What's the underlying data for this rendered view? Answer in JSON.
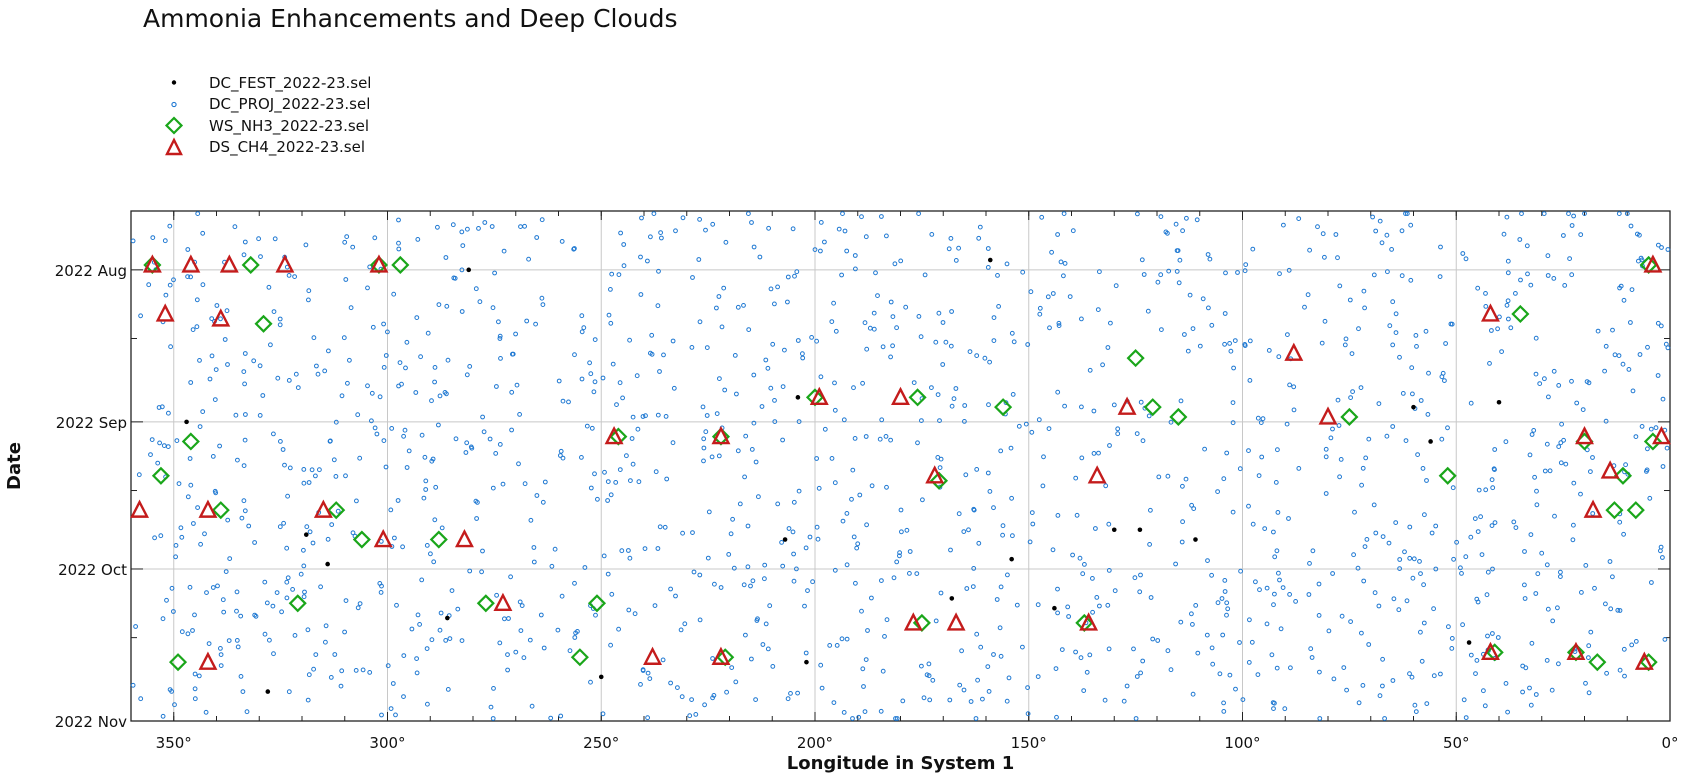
{
  "chart_data": {
    "type": "scatter",
    "title": "Ammonia Enhancements and Deep Clouds",
    "xlabel": "Longitude in System 1",
    "ylabel": "Date",
    "xlim": [
      360,
      0
    ],
    "ylim": [
      "2022-07-20",
      "2022-11-01"
    ],
    "x_ticks": [
      350,
      300,
      250,
      200,
      150,
      100,
      50,
      0
    ],
    "x_tick_labels": [
      "350°",
      "300°",
      "250°",
      "200°",
      "150°",
      "100°",
      "50°",
      "0°"
    ],
    "y_ticks": [
      "2022-08-01",
      "2022-09-01",
      "2022-10-01",
      "2022-11-01"
    ],
    "y_tick_labels": [
      "2022 Aug",
      "2022 Sep",
      "2022 Oct",
      "2022 Nov"
    ],
    "grid": true,
    "legend_position": "top-left",
    "series": [
      {
        "name": "DC_FEST_2022-23.sel",
        "marker": "dot",
        "color": "#000000",
        "points": [
          {
            "x": 281,
            "date": "2022-08-01"
          },
          {
            "x": 159,
            "date": "2022-07-30"
          },
          {
            "x": 204,
            "date": "2022-08-27"
          },
          {
            "x": 60,
            "date": "2022-08-29"
          },
          {
            "x": 40,
            "date": "2022-08-28"
          },
          {
            "x": 347,
            "date": "2022-09-01"
          },
          {
            "x": 56,
            "date": "2022-09-05"
          },
          {
            "x": 319,
            "date": "2022-09-24"
          },
          {
            "x": 130,
            "date": "2022-09-23"
          },
          {
            "x": 124,
            "date": "2022-09-23"
          },
          {
            "x": 207,
            "date": "2022-09-25"
          },
          {
            "x": 111,
            "date": "2022-09-25"
          },
          {
            "x": 314,
            "date": "2022-09-30"
          },
          {
            "x": 154,
            "date": "2022-09-29"
          },
          {
            "x": 168,
            "date": "2022-10-07"
          },
          {
            "x": 144,
            "date": "2022-10-09"
          },
          {
            "x": 286,
            "date": "2022-10-11"
          },
          {
            "x": 47,
            "date": "2022-10-16"
          },
          {
            "x": 250,
            "date": "2022-10-23"
          },
          {
            "x": 202,
            "date": "2022-10-20"
          },
          {
            "x": 328,
            "date": "2022-10-26"
          }
        ]
      },
      {
        "name": "DC_PROJ_2022-23.sel",
        "marker": "circle",
        "color": "#1e78d2",
        "note_generation": "procedural",
        "count": 1500
      },
      {
        "name": "WS_NH3_2022-23.sel",
        "marker": "diamond",
        "color": "#1aa61a",
        "points": [
          {
            "x": 355,
            "date": "2022-07-31"
          },
          {
            "x": 332,
            "date": "2022-07-31"
          },
          {
            "x": 302,
            "date": "2022-07-31"
          },
          {
            "x": 297,
            "date": "2022-07-31"
          },
          {
            "x": 5,
            "date": "2022-07-31"
          },
          {
            "x": 329,
            "date": "2022-08-12"
          },
          {
            "x": 35,
            "date": "2022-08-10"
          },
          {
            "x": 125,
            "date": "2022-08-19"
          },
          {
            "x": 200,
            "date": "2022-08-27"
          },
          {
            "x": 176,
            "date": "2022-08-27"
          },
          {
            "x": 156,
            "date": "2022-08-29"
          },
          {
            "x": 121,
            "date": "2022-08-29"
          },
          {
            "x": 115,
            "date": "2022-08-31"
          },
          {
            "x": 75,
            "date": "2022-08-31"
          },
          {
            "x": 346,
            "date": "2022-09-05"
          },
          {
            "x": 246,
            "date": "2022-09-04"
          },
          {
            "x": 222,
            "date": "2022-09-04"
          },
          {
            "x": 20,
            "date": "2022-09-05"
          },
          {
            "x": 4,
            "date": "2022-09-05"
          },
          {
            "x": 353,
            "date": "2022-09-12"
          },
          {
            "x": 171,
            "date": "2022-09-13"
          },
          {
            "x": 52,
            "date": "2022-09-12"
          },
          {
            "x": 11,
            "date": "2022-09-12"
          },
          {
            "x": 339,
            "date": "2022-09-19"
          },
          {
            "x": 312,
            "date": "2022-09-19"
          },
          {
            "x": 13,
            "date": "2022-09-19"
          },
          {
            "x": 8,
            "date": "2022-09-19"
          },
          {
            "x": 306,
            "date": "2022-09-25"
          },
          {
            "x": 288,
            "date": "2022-09-25"
          },
          {
            "x": 321,
            "date": "2022-10-08"
          },
          {
            "x": 277,
            "date": "2022-10-08"
          },
          {
            "x": 251,
            "date": "2022-10-08"
          },
          {
            "x": 175,
            "date": "2022-10-12"
          },
          {
            "x": 137,
            "date": "2022-10-12"
          },
          {
            "x": 349,
            "date": "2022-10-20"
          },
          {
            "x": 255,
            "date": "2022-10-19"
          },
          {
            "x": 221,
            "date": "2022-10-19"
          },
          {
            "x": 41,
            "date": "2022-10-18"
          },
          {
            "x": 22,
            "date": "2022-10-18"
          },
          {
            "x": 17,
            "date": "2022-10-20"
          },
          {
            "x": 5,
            "date": "2022-10-20"
          }
        ]
      },
      {
        "name": "DS_CH4_2022-23.sel",
        "marker": "triangle",
        "color": "#c41c1c",
        "points": [
          {
            "x": 355,
            "date": "2022-07-31"
          },
          {
            "x": 346,
            "date": "2022-07-31"
          },
          {
            "x": 337,
            "date": "2022-07-31"
          },
          {
            "x": 324,
            "date": "2022-07-31"
          },
          {
            "x": 302,
            "date": "2022-07-31"
          },
          {
            "x": 4,
            "date": "2022-07-31"
          },
          {
            "x": 352,
            "date": "2022-08-10"
          },
          {
            "x": 339,
            "date": "2022-08-11"
          },
          {
            "x": 42,
            "date": "2022-08-10"
          },
          {
            "x": 88,
            "date": "2022-08-18"
          },
          {
            "x": 180,
            "date": "2022-08-27"
          },
          {
            "x": 199,
            "date": "2022-08-27"
          },
          {
            "x": 127,
            "date": "2022-08-29"
          },
          {
            "x": 80,
            "date": "2022-08-31"
          },
          {
            "x": 247,
            "date": "2022-09-04"
          },
          {
            "x": 222,
            "date": "2022-09-04"
          },
          {
            "x": 20,
            "date": "2022-09-04"
          },
          {
            "x": 2,
            "date": "2022-09-04"
          },
          {
            "x": 172,
            "date": "2022-09-12"
          },
          {
            "x": 134,
            "date": "2022-09-12"
          },
          {
            "x": 14,
            "date": "2022-09-11"
          },
          {
            "x": 358,
            "date": "2022-09-19"
          },
          {
            "x": 342,
            "date": "2022-09-19"
          },
          {
            "x": 315,
            "date": "2022-09-19"
          },
          {
            "x": 18,
            "date": "2022-09-19"
          },
          {
            "x": 301,
            "date": "2022-09-25"
          },
          {
            "x": 282,
            "date": "2022-09-25"
          },
          {
            "x": 273,
            "date": "2022-10-08"
          },
          {
            "x": 177,
            "date": "2022-10-12"
          },
          {
            "x": 167,
            "date": "2022-10-12"
          },
          {
            "x": 136,
            "date": "2022-10-12"
          },
          {
            "x": 342,
            "date": "2022-10-20"
          },
          {
            "x": 238,
            "date": "2022-10-19"
          },
          {
            "x": 222,
            "date": "2022-10-19"
          },
          {
            "x": 42,
            "date": "2022-10-18"
          },
          {
            "x": 22,
            "date": "2022-10-18"
          },
          {
            "x": 6,
            "date": "2022-10-20"
          }
        ]
      }
    ]
  }
}
